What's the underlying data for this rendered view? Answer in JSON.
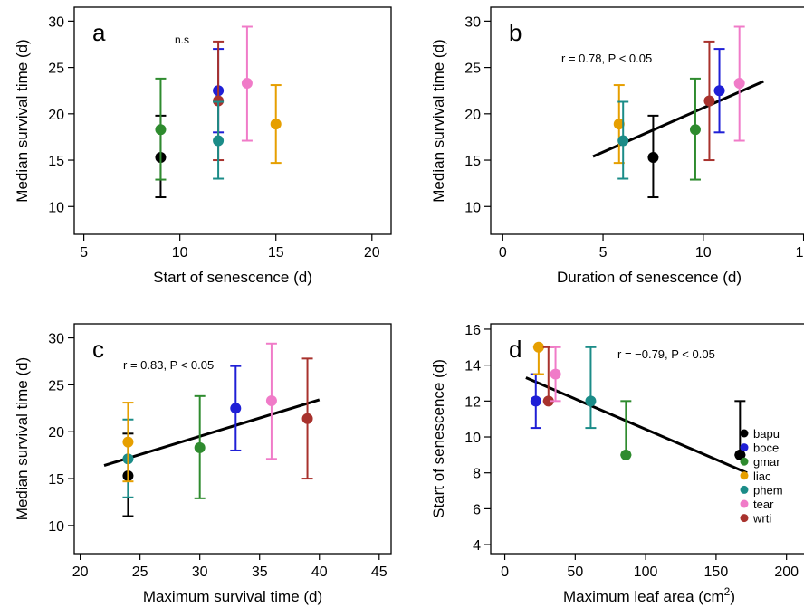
{
  "chart_data": [
    {
      "type": "scatter",
      "panel_letter": "a",
      "xlabel": "Start of senescence (d)",
      "ylabel": "Median survival time (d)",
      "annotation": "n.s",
      "xlim": [
        4.5,
        21
      ],
      "ylim": [
        7,
        31.5
      ],
      "xticks": [
        5,
        10,
        15,
        20
      ],
      "yticks": [
        10,
        15,
        20,
        25,
        30
      ],
      "trend": null,
      "points": [
        {
          "species": "bapu",
          "x": 9,
          "y": 15.3,
          "lo": 11.0,
          "hi": 19.8
        },
        {
          "species": "gmar",
          "x": 9,
          "y": 18.3,
          "lo": 12.9,
          "hi": 23.8
        },
        {
          "species": "boce",
          "x": 12,
          "y": 22.5,
          "lo": 18.0,
          "hi": 27.0
        },
        {
          "species": "wrti",
          "x": 12,
          "y": 21.4,
          "lo": 15.0,
          "hi": 27.8
        },
        {
          "species": "phem",
          "x": 12,
          "y": 17.1,
          "lo": 13.0,
          "hi": 21.3
        },
        {
          "species": "tear",
          "x": 13.5,
          "y": 23.3,
          "lo": 17.1,
          "hi": 29.4
        },
        {
          "species": "liac",
          "x": 15,
          "y": 18.9,
          "lo": 14.7,
          "hi": 23.1
        }
      ]
    },
    {
      "type": "scatter",
      "panel_letter": "b",
      "xlabel": "Duration of senescence (d)",
      "ylabel": "Median survival time (d)",
      "annotation": "r = 0.78, P < 0.05",
      "xlim": [
        -0.6,
        15.2
      ],
      "ylim": [
        7,
        31.5
      ],
      "xticks": [
        0,
        5,
        10,
        15
      ],
      "yticks": [
        10,
        15,
        20,
        25,
        30
      ],
      "trend": {
        "x1": 4.5,
        "y1": 15.4,
        "x2": 13,
        "y2": 23.5
      },
      "points": [
        {
          "species": "liac",
          "x": 5.8,
          "y": 18.9,
          "lo": 14.7,
          "hi": 23.1
        },
        {
          "species": "phem",
          "x": 6.0,
          "y": 17.1,
          "lo": 13.0,
          "hi": 21.3
        },
        {
          "species": "bapu",
          "x": 7.5,
          "y": 15.3,
          "lo": 11.0,
          "hi": 19.8
        },
        {
          "species": "gmar",
          "x": 9.6,
          "y": 18.3,
          "lo": 12.9,
          "hi": 23.8
        },
        {
          "species": "wrti",
          "x": 10.3,
          "y": 21.4,
          "lo": 15.0,
          "hi": 27.8
        },
        {
          "species": "boce",
          "x": 10.8,
          "y": 22.5,
          "lo": 18.0,
          "hi": 27.0
        },
        {
          "species": "tear",
          "x": 11.8,
          "y": 23.3,
          "lo": 17.1,
          "hi": 29.4
        }
      ]
    },
    {
      "type": "scatter",
      "panel_letter": "c",
      "xlabel": "Maximum survival time (d)",
      "ylabel": "Median survival time (d)",
      "annotation": "r = 0.83, P < 0.05",
      "xlim": [
        19.5,
        46
      ],
      "ylim": [
        7,
        31.5
      ],
      "xticks": [
        20,
        25,
        30,
        35,
        40,
        45
      ],
      "yticks": [
        10,
        15,
        20,
        25,
        30
      ],
      "trend": {
        "x1": 22,
        "y1": 16.4,
        "x2": 40,
        "y2": 23.4
      },
      "points": [
        {
          "species": "bapu",
          "x": 24,
          "y": 15.3,
          "lo": 11.0,
          "hi": 19.8
        },
        {
          "species": "phem",
          "x": 24,
          "y": 17.1,
          "lo": 13.0,
          "hi": 21.3
        },
        {
          "species": "liac",
          "x": 24,
          "y": 18.9,
          "lo": 14.7,
          "hi": 23.1
        },
        {
          "species": "gmar",
          "x": 30,
          "y": 18.3,
          "lo": 12.9,
          "hi": 23.8
        },
        {
          "species": "boce",
          "x": 33,
          "y": 22.5,
          "lo": 18.0,
          "hi": 27.0
        },
        {
          "species": "tear",
          "x": 36,
          "y": 23.3,
          "lo": 17.1,
          "hi": 29.4
        },
        {
          "species": "wrti",
          "x": 39,
          "y": 21.4,
          "lo": 15.0,
          "hi": 27.8
        }
      ]
    },
    {
      "type": "scatter",
      "panel_letter": "d",
      "xlabel": "Maximum leaf area (cm",
      "xlabel_sup": "2",
      "xlabel_end": ")",
      "ylabel": "Start of senescence (d)",
      "annotation": "r = −0.79, P < 0.05",
      "xlim": [
        -10,
        215
      ],
      "ylim": [
        3.5,
        16.3
      ],
      "xticks": [
        0,
        50,
        100,
        150,
        200
      ],
      "yticks": [
        4,
        6,
        8,
        10,
        12,
        14,
        16
      ],
      "trend": {
        "x1": 15,
        "y1": 13.3,
        "x2": 172,
        "y2": 8.0
      },
      "points": [
        {
          "species": "boce",
          "x": 22,
          "y": 12,
          "lo": 10.5,
          "hi": 13.5
        },
        {
          "species": "liac",
          "x": 24,
          "y": 15,
          "lo": 13.5,
          "hi": 15.0
        },
        {
          "species": "wrti",
          "x": 31,
          "y": 12,
          "lo": 12.0,
          "hi": 15.0
        },
        {
          "species": "tear",
          "x": 36,
          "y": 13.5,
          "lo": 12.0,
          "hi": 15.0
        },
        {
          "species": "phem",
          "x": 61,
          "y": 12,
          "lo": 10.5,
          "hi": 15.0
        },
        {
          "species": "gmar",
          "x": 86,
          "y": 9,
          "lo": 9.0,
          "hi": 12.0
        },
        {
          "species": "bapu",
          "x": 167,
          "y": 9,
          "lo": 9.0,
          "hi": 12.0
        }
      ]
    }
  ],
  "legend": {
    "placement": "bottom-right of panel d",
    "entries": [
      {
        "species": "bapu",
        "label": "bapu",
        "color": "#000000"
      },
      {
        "species": "boce",
        "label": "boce",
        "color": "#1f1fd6"
      },
      {
        "species": "gmar",
        "label": "gmar",
        "color": "#2e8b2e"
      },
      {
        "species": "liac",
        "label": "liac",
        "color": "#e69f00"
      },
      {
        "species": "phem",
        "label": "phem",
        "color": "#1b8c88"
      },
      {
        "species": "tear",
        "label": "tear",
        "color": "#f07bc8"
      },
      {
        "species": "wrti",
        "label": "wrti",
        "color": "#a8322d"
      }
    ]
  }
}
